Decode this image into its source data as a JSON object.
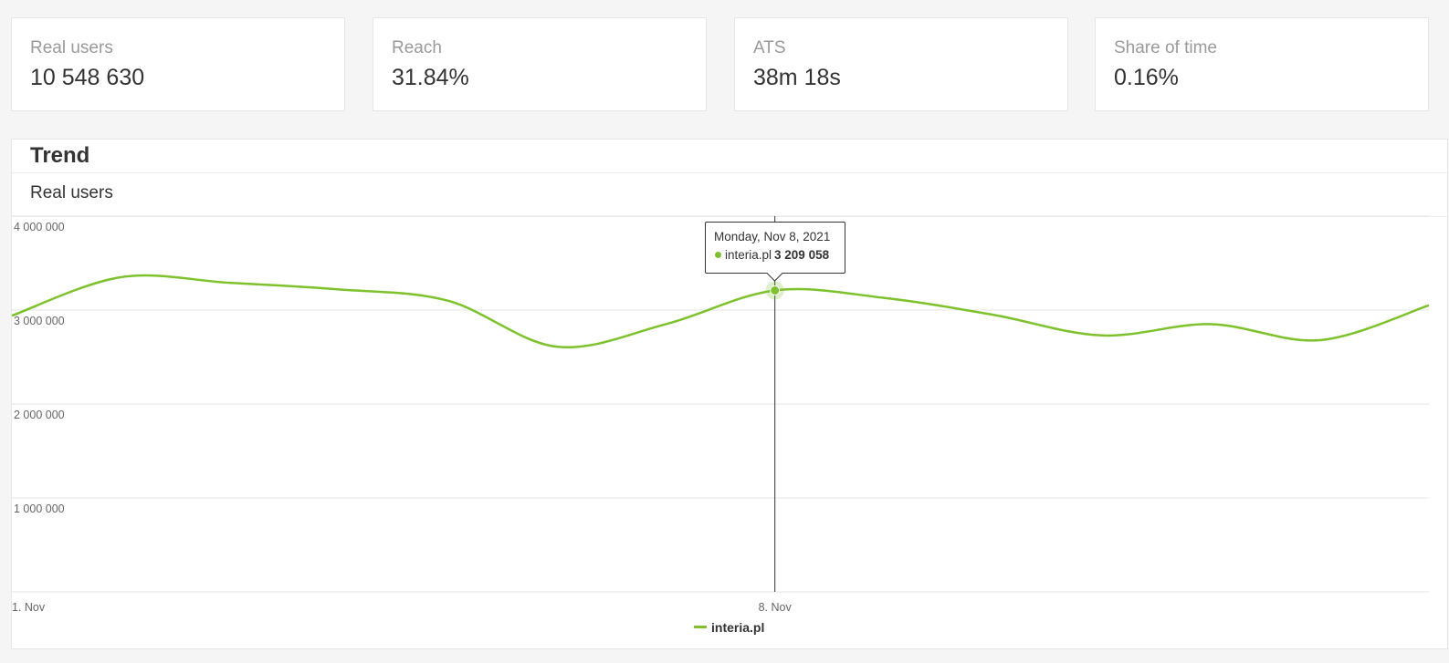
{
  "kpis": [
    {
      "label": "Real users",
      "value": "10 548 630"
    },
    {
      "label": "Reach",
      "value": "31.84%"
    },
    {
      "label": "ATS",
      "value": "38m 18s"
    },
    {
      "label": "Share of time",
      "value": "0.16%"
    }
  ],
  "trend": {
    "title": "Trend",
    "subtitle": "Real users"
  },
  "tooltip": {
    "date": "Monday, Nov 8, 2021",
    "series": "interia.pl",
    "value": "3 209 058"
  },
  "colors": {
    "series": "#7dc22c",
    "grid": "#e6e6e6",
    "crosshair": "#333333"
  },
  "chart_data": {
    "type": "line",
    "x": [
      "2021-11-01",
      "2021-11-02",
      "2021-11-03",
      "2021-11-04",
      "2021-11-05",
      "2021-11-06",
      "2021-11-07",
      "2021-11-08",
      "2021-11-09",
      "2021-11-10",
      "2021-11-11",
      "2021-11-12",
      "2021-11-13",
      "2021-11-14"
    ],
    "series": [
      {
        "name": "interia.pl",
        "values": [
          2940000,
          3350000,
          3290000,
          3220000,
          3100000,
          2610000,
          2850000,
          3209058,
          3130000,
          2950000,
          2730000,
          2850000,
          2680000,
          3050000
        ]
      }
    ],
    "yticks": [
      {
        "value": 4000000,
        "label": "4 000 000"
      },
      {
        "value": 3000000,
        "label": "3 000 000"
      },
      {
        "value": 2000000,
        "label": "2 000 000"
      },
      {
        "value": 1000000,
        "label": "1 000 000"
      }
    ],
    "xticks": [
      {
        "x": "2021-11-01",
        "label": "1. Nov"
      },
      {
        "x": "2021-11-08",
        "label": "8. Nov"
      }
    ],
    "ylim": [
      0,
      4000000
    ],
    "highlighted_x": "2021-11-08",
    "grid": true,
    "legend": "bottom-center"
  }
}
